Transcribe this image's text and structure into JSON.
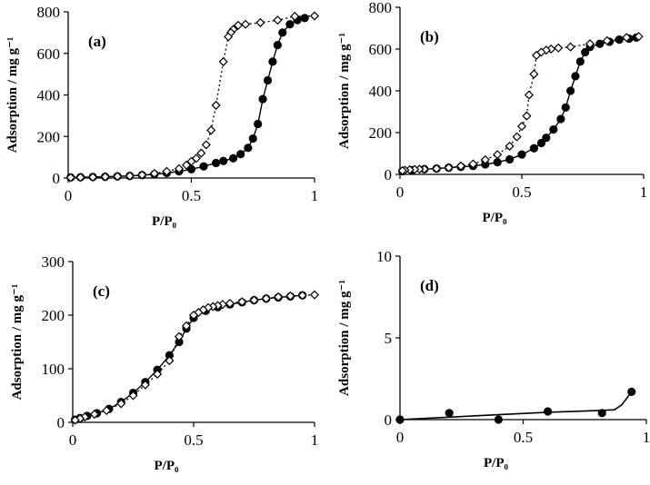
{
  "chart_data": [
    {
      "type": "scatter",
      "panel": "(a)",
      "xlabel": "P/P₀",
      "ylabel": "Adsorption / mg g⁻¹",
      "xlim": [
        0,
        1
      ],
      "ylim": [
        0,
        800
      ],
      "xticks": [
        0,
        0.5,
        1
      ],
      "xtick_labels": [
        "0",
        "0.5",
        "1"
      ],
      "yticks": [
        0,
        200,
        400,
        600,
        800
      ],
      "ytick_labels": [
        "0",
        "200",
        "400",
        "600",
        "800"
      ],
      "series": [
        {
          "marker": "filled",
          "line": "solid",
          "points": [
            [
              0.01,
              3
            ],
            [
              0.05,
              4
            ],
            [
              0.1,
              5
            ],
            [
              0.15,
              6
            ],
            [
              0.2,
              8
            ],
            [
              0.25,
              10
            ],
            [
              0.3,
              14
            ],
            [
              0.35,
              18
            ],
            [
              0.4,
              24
            ],
            [
              0.45,
              32
            ],
            [
              0.5,
              42
            ],
            [
              0.55,
              56
            ],
            [
              0.6,
              72
            ],
            [
              0.63,
              82
            ],
            [
              0.67,
              95
            ],
            [
              0.7,
              115
            ],
            [
              0.73,
              145
            ],
            [
              0.75,
              190
            ],
            [
              0.77,
              260
            ],
            [
              0.79,
              380
            ],
            [
              0.81,
              470
            ],
            [
              0.83,
              560
            ],
            [
              0.85,
              640
            ],
            [
              0.87,
              700
            ],
            [
              0.9,
              740
            ],
            [
              0.93,
              760
            ],
            [
              0.96,
              770
            ]
          ]
        },
        {
          "marker": "open",
          "line": "dotted",
          "points": [
            [
              1.0,
              780
            ],
            [
              0.92,
              778
            ],
            [
              0.85,
              760
            ],
            [
              0.78,
              748
            ],
            [
              0.72,
              740
            ],
            [
              0.69,
              735
            ],
            [
              0.67,
              715
            ],
            [
              0.66,
              700
            ],
            [
              0.65,
              680
            ],
            [
              0.63,
              560
            ],
            [
              0.6,
              350
            ],
            [
              0.58,
              230
            ],
            [
              0.56,
              160
            ],
            [
              0.54,
              120
            ],
            [
              0.52,
              95
            ],
            [
              0.5,
              80
            ],
            [
              0.48,
              62
            ],
            [
              0.45,
              45
            ],
            [
              0.4,
              32
            ],
            [
              0.35,
              22
            ],
            [
              0.3,
              15
            ],
            [
              0.25,
              10
            ],
            [
              0.2,
              8
            ],
            [
              0.15,
              6
            ],
            [
              0.1,
              4
            ],
            [
              0.05,
              3
            ],
            [
              0.01,
              2
            ]
          ]
        }
      ]
    },
    {
      "type": "scatter",
      "panel": "(b)",
      "xlabel": "P/P₀",
      "ylabel": "Adsorption / mg g⁻¹",
      "xlim": [
        0,
        1
      ],
      "ylim": [
        0,
        800
      ],
      "xticks": [
        0,
        0.5,
        1
      ],
      "xtick_labels": [
        "0",
        "0.5",
        "1"
      ],
      "yticks": [
        0,
        200,
        400,
        600,
        800
      ],
      "ytick_labels": [
        "0",
        "200",
        "400",
        "600",
        "800"
      ],
      "series": [
        {
          "marker": "filled",
          "line": "solid",
          "points": [
            [
              0.01,
              15
            ],
            [
              0.05,
              20
            ],
            [
              0.1,
              25
            ],
            [
              0.15,
              28
            ],
            [
              0.2,
              32
            ],
            [
              0.25,
              36
            ],
            [
              0.3,
              40
            ],
            [
              0.35,
              48
            ],
            [
              0.4,
              58
            ],
            [
              0.45,
              72
            ],
            [
              0.5,
              95
            ],
            [
              0.55,
              125
            ],
            [
              0.58,
              150
            ],
            [
              0.6,
              175
            ],
            [
              0.63,
              215
            ],
            [
              0.66,
              265
            ],
            [
              0.68,
              320
            ],
            [
              0.7,
              400
            ],
            [
              0.72,
              470
            ],
            [
              0.74,
              540
            ],
            [
              0.76,
              585
            ],
            [
              0.78,
              610
            ],
            [
              0.82,
              625
            ],
            [
              0.86,
              635
            ],
            [
              0.9,
              645
            ],
            [
              0.94,
              650
            ],
            [
              0.97,
              655
            ]
          ]
        },
        {
          "marker": "open",
          "line": "dotted",
          "points": [
            [
              0.98,
              660
            ],
            [
              0.93,
              655
            ],
            [
              0.85,
              640
            ],
            [
              0.78,
              625
            ],
            [
              0.7,
              610
            ],
            [
              0.65,
              605
            ],
            [
              0.62,
              600
            ],
            [
              0.6,
              595
            ],
            [
              0.58,
              585
            ],
            [
              0.56,
              570
            ],
            [
              0.55,
              480
            ],
            [
              0.53,
              380
            ],
            [
              0.52,
              280
            ],
            [
              0.5,
              230
            ],
            [
              0.48,
              180
            ],
            [
              0.45,
              135
            ],
            [
              0.4,
              95
            ],
            [
              0.35,
              70
            ],
            [
              0.3,
              50
            ],
            [
              0.25,
              40
            ],
            [
              0.2,
              32
            ],
            [
              0.15,
              28
            ],
            [
              0.1,
              25
            ],
            [
              0.08,
              25
            ],
            [
              0.06,
              24
            ],
            [
              0.04,
              22
            ],
            [
              0.02,
              20
            ],
            [
              0.01,
              18
            ]
          ]
        }
      ]
    },
    {
      "type": "scatter",
      "panel": "(c)",
      "xlabel": "P/P₀",
      "ylabel": "Adsorption / mg g⁻¹",
      "xlim": [
        0,
        1
      ],
      "ylim": [
        0,
        300
      ],
      "xticks": [
        0,
        0.5,
        1
      ],
      "xtick_labels": [
        "0",
        "0.5",
        "1"
      ],
      "yticks": [
        0,
        100,
        200,
        300
      ],
      "ytick_labels": [
        "0",
        "100",
        "200",
        "300"
      ],
      "series": [
        {
          "marker": "filled",
          "line": "solid",
          "points": [
            [
              0.01,
              5
            ],
            [
              0.03,
              8
            ],
            [
              0.06,
              12
            ],
            [
              0.1,
              17
            ],
            [
              0.15,
              25
            ],
            [
              0.2,
              38
            ],
            [
              0.25,
              55
            ],
            [
              0.3,
              75
            ],
            [
              0.35,
              98
            ],
            [
              0.4,
              125
            ],
            [
              0.44,
              150
            ],
            [
              0.47,
              175
            ],
            [
              0.5,
              195
            ],
            [
              0.55,
              208
            ],
            [
              0.6,
              215
            ],
            [
              0.65,
              220
            ],
            [
              0.7,
              224
            ],
            [
              0.75,
              228
            ],
            [
              0.8,
              231
            ],
            [
              0.85,
              233
            ],
            [
              0.9,
              235
            ],
            [
              0.95,
              237
            ]
          ]
        },
        {
          "marker": "open",
          "line": "dotted",
          "points": [
            [
              1.0,
              238
            ],
            [
              0.95,
              237
            ],
            [
              0.9,
              236
            ],
            [
              0.85,
              234
            ],
            [
              0.8,
              231
            ],
            [
              0.75,
              228
            ],
            [
              0.7,
              225
            ],
            [
              0.65,
              222
            ],
            [
              0.62,
              220
            ],
            [
              0.6,
              218
            ],
            [
              0.58,
              216
            ],
            [
              0.56,
              214
            ],
            [
              0.54,
              210
            ],
            [
              0.52,
              205
            ],
            [
              0.5,
              200
            ],
            [
              0.47,
              180
            ],
            [
              0.44,
              160
            ],
            [
              0.4,
              115
            ],
            [
              0.35,
              90
            ],
            [
              0.3,
              70
            ],
            [
              0.25,
              50
            ],
            [
              0.2,
              35
            ],
            [
              0.14,
              22
            ],
            [
              0.09,
              15
            ],
            [
              0.05,
              10
            ],
            [
              0.03,
              7
            ],
            [
              0.01,
              4
            ]
          ]
        }
      ]
    },
    {
      "type": "scatter",
      "panel": "(d)",
      "xlabel": "P/P₀",
      "ylabel": "Adsorption / mg g⁻¹",
      "xlim": [
        0,
        1
      ],
      "ylim": [
        0,
        10
      ],
      "xticks": [
        0,
        0.5,
        1
      ],
      "xtick_labels": [
        "0",
        "0.5",
        "1"
      ],
      "yticks": [
        0,
        5,
        10
      ],
      "ytick_labels": [
        "0",
        "5",
        "10"
      ],
      "series": [
        {
          "marker": "filled",
          "line": "solid",
          "points": [
            [
              0.0,
              0.0
            ],
            [
              0.2,
              0.4
            ],
            [
              0.4,
              0.0
            ],
            [
              0.6,
              0.5
            ],
            [
              0.82,
              0.4
            ],
            [
              0.94,
              1.7
            ]
          ]
        }
      ],
      "fit_line": [
        [
          0.0,
          0.0
        ],
        [
          0.2,
          0.15
        ],
        [
          0.4,
          0.3
        ],
        [
          0.6,
          0.45
        ],
        [
          0.8,
          0.55
        ],
        [
          0.87,
          0.6
        ],
        [
          0.9,
          0.9
        ],
        [
          0.94,
          1.7
        ]
      ]
    }
  ],
  "colors": {
    "ink": "#000000",
    "paper": "#ffffff"
  }
}
